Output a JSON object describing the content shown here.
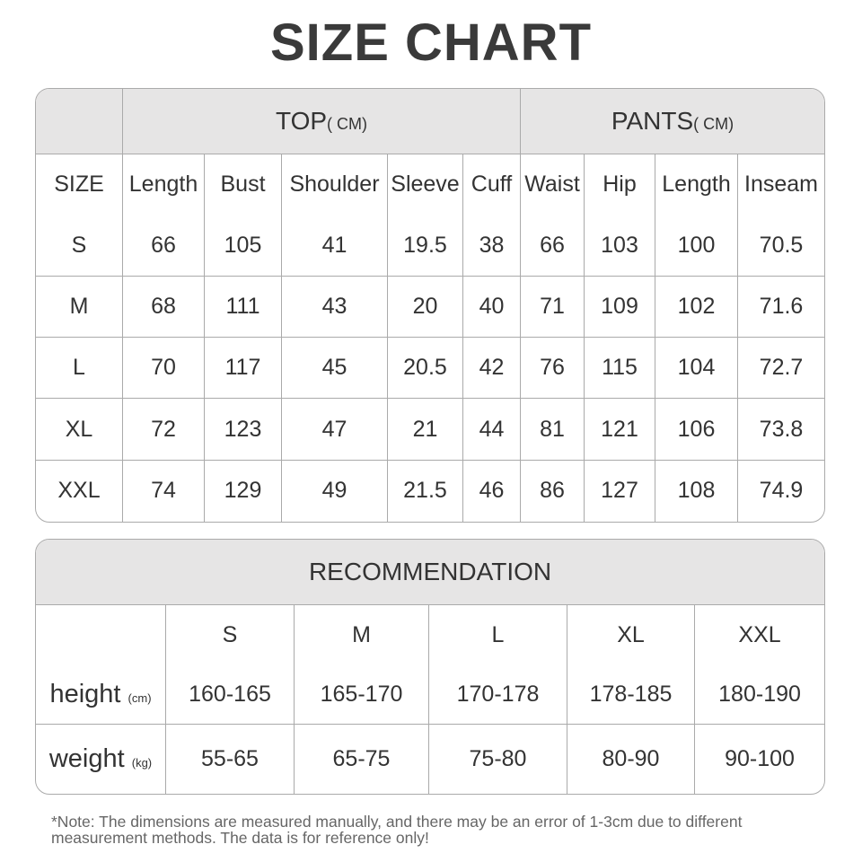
{
  "title": "SIZE CHART",
  "size_table": {
    "top_group": "TOP",
    "top_unit": "( CM)",
    "pants_group": "PANTS",
    "pants_unit": "( CM)",
    "columns": [
      "SIZE",
      "Length",
      "Bust",
      "Shoulder",
      "Sleeve",
      "Cuff",
      "Waist",
      "Hip",
      "Length",
      "Inseam"
    ],
    "rows": [
      [
        "S",
        "66",
        "105",
        "41",
        "19.5",
        "38",
        "66",
        "103",
        "100",
        "70.5"
      ],
      [
        "M",
        "68",
        "111",
        "43",
        "20",
        "40",
        "71",
        "109",
        "102",
        "71.6"
      ],
      [
        "L",
        "70",
        "117",
        "45",
        "20.5",
        "42",
        "76",
        "115",
        "104",
        "72.7"
      ],
      [
        "XL",
        "72",
        "123",
        "47",
        "21",
        "44",
        "81",
        "121",
        "106",
        "73.8"
      ],
      [
        "XXL",
        "74",
        "129",
        "49",
        "21.5",
        "46",
        "86",
        "127",
        "108",
        "74.9"
      ]
    ]
  },
  "recommendation": {
    "title": "RECOMMENDATION",
    "sizes": [
      "S",
      "M",
      "L",
      "XL",
      "XXL"
    ],
    "rows": [
      {
        "label": "height",
        "unit": "(cm)",
        "values": [
          "160-165",
          "165-170",
          "170-178",
          "178-185",
          "180-190"
        ]
      },
      {
        "label": "weight",
        "unit": "(kg)",
        "values": [
          "55-65",
          "65-75",
          "75-80",
          "80-90",
          "90-100"
        ]
      }
    ]
  },
  "note": "*Note: The dimensions are measured manually, and there may be an error of 1-3cm due to different measurement methods. The data is for reference only!",
  "colors": {
    "header_bg": "#e6e5e5",
    "border": "#aaaaaa",
    "text": "#333333"
  }
}
